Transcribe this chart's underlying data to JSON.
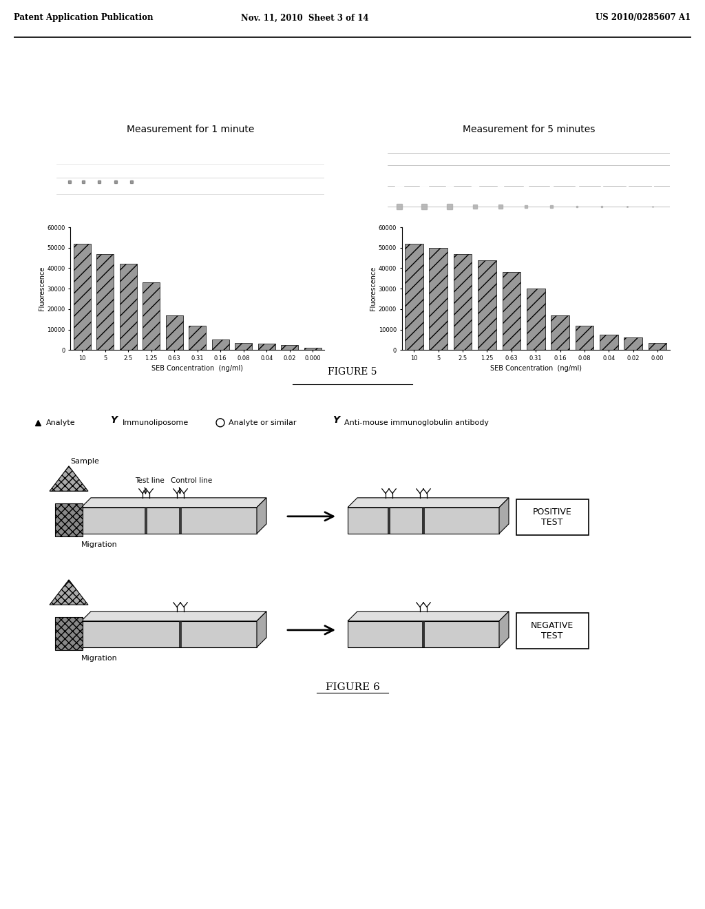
{
  "header_left": "Patent Application Publication",
  "header_mid": "Nov. 11, 2010  Sheet 3 of 14",
  "header_right": "US 2010/0285607 A1",
  "fig5_label": "FIGURE 5",
  "fig6_label": "FIGURE 6",
  "chart1_title": "Measurement for 1 minute",
  "chart2_title": "Measurement for 5 minutes",
  "chart1_values": [
    52000,
    47000,
    42000,
    33000,
    17000,
    12000,
    5000,
    3500,
    3000,
    2500,
    1000
  ],
  "chart2_values": [
    52000,
    50000,
    47000,
    44000,
    38000,
    30000,
    17000,
    12000,
    7500,
    6000,
    3500
  ],
  "chart1_xlabels": [
    "10",
    "5",
    "2.5",
    "1.25",
    "0.63",
    "0.31",
    "0.16",
    "0.08",
    "0.04",
    "0.02",
    "0.000"
  ],
  "chart2_xlabels": [
    "10",
    "5",
    "2.5",
    "1.25",
    "0.63",
    "0.31",
    "0.16",
    "0.08",
    "0.04",
    "0.02",
    "0.00"
  ],
  "ylabel": "Fluorescence",
  "xlabel": "SEB Concentration  (ng/ml)",
  "ylim": [
    0,
    60000
  ],
  "yticks": [
    0,
    10000,
    20000,
    30000,
    40000,
    50000,
    60000
  ],
  "ytick_labels": [
    "0",
    "10000",
    "20000",
    "30000",
    "40000",
    "50000",
    "60000"
  ],
  "bar_color": "#999999",
  "bar_hatch": "//",
  "positive_label": "POSITIVE\nTEST",
  "negative_label": "NEGATIVE\nTEST"
}
